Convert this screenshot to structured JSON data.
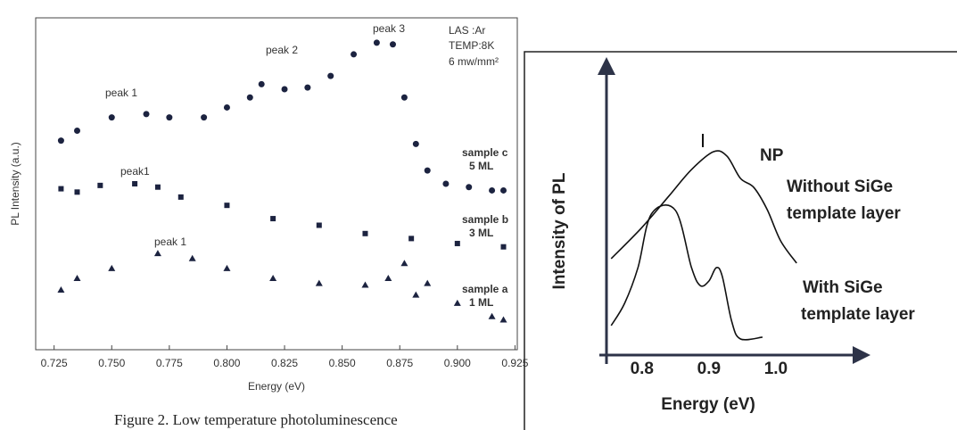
{
  "caption": "Figure 2. Low temperature photoluminescence",
  "chart_data": [
    {
      "type": "scatter",
      "xlabel": "Energy (eV)",
      "ylabel": "PL Intensity (a.u.)",
      "xlim": [
        0.717,
        0.926
      ],
      "ylim": [
        0,
        10
      ],
      "xticks": [
        {
          "value": 0.725,
          "label": "0.725"
        },
        {
          "value": 0.75,
          "label": "0.750"
        },
        {
          "value": 0.775,
          "label": "0.775"
        },
        {
          "value": 0.8,
          "label": "0.800"
        },
        {
          "value": 0.825,
          "label": "0.825"
        },
        {
          "value": 0.85,
          "label": "0.850"
        },
        {
          "value": 0.875,
          "label": "0.875"
        },
        {
          "value": 0.9,
          "label": "0.900"
        },
        {
          "value": 0.925,
          "label": "0.925"
        }
      ],
      "annotations": [
        "peak 1",
        "peak 2",
        "peak 3",
        "peak1",
        "peak 1",
        "LAS :Ar",
        "TEMP:8K",
        "6 mw/mm²"
      ],
      "series": [
        {
          "name": "sample c",
          "thickness": "5 ML",
          "marker": "circle",
          "color": "#1c2340",
          "x": [
            0.728,
            0.735,
            0.75,
            0.765,
            0.775,
            0.79,
            0.8,
            0.81,
            0.815,
            0.825,
            0.835,
            0.845,
            0.855,
            0.865,
            0.872,
            0.877,
            0.882,
            0.887,
            0.895,
            0.905,
            0.915,
            0.92
          ],
          "values": [
            6.3,
            6.6,
            7.0,
            7.1,
            7.0,
            7.0,
            7.3,
            7.6,
            8.0,
            7.85,
            7.9,
            8.25,
            8.9,
            9.25,
            9.2,
            7.6,
            6.2,
            5.4,
            5.0,
            4.9,
            4.8,
            4.8
          ]
        },
        {
          "name": "sample b",
          "thickness": "3 ML",
          "marker": "square",
          "color": "#1c2340",
          "x": [
            0.728,
            0.735,
            0.745,
            0.76,
            0.77,
            0.78,
            0.8,
            0.82,
            0.84,
            0.86,
            0.88,
            0.9,
            0.92
          ],
          "values": [
            4.85,
            4.75,
            4.95,
            5.0,
            4.9,
            4.6,
            4.35,
            3.95,
            3.75,
            3.5,
            3.35,
            3.2,
            3.1
          ]
        },
        {
          "name": "sample a",
          "thickness": "1 ML",
          "marker": "triangle",
          "color": "#1c2340",
          "x": [
            0.728,
            0.735,
            0.75,
            0.77,
            0.785,
            0.8,
            0.82,
            0.84,
            0.86,
            0.87,
            0.877,
            0.882,
            0.887,
            0.9,
            0.915,
            0.92
          ],
          "values": [
            1.8,
            2.15,
            2.45,
            2.9,
            2.75,
            2.45,
            2.15,
            2.0,
            1.95,
            2.15,
            2.6,
            1.65,
            2.0,
            1.4,
            1.0,
            0.9
          ]
        }
      ]
    },
    {
      "type": "line",
      "xlabel": "Energy (eV)",
      "ylabel": "Intensity of PL",
      "xlim": [
        0.747,
        1.12
      ],
      "ylim": [
        0,
        10
      ],
      "xticks": [
        0.8,
        0.9,
        {
          "value": 1.0,
          "label": "1.0"
        }
      ],
      "annotations": [
        "NP",
        "Without  SiGe",
        "template layer",
        "With SiGe",
        "template layer"
      ],
      "series": [
        {
          "color": "#111111",
          "x": [
            0.754,
            0.8,
            0.84,
            0.874,
            0.907,
            0.927,
            0.947,
            0.967,
            0.987,
            1.007,
            1.031
          ],
          "values": [
            3.4,
            4.5,
            5.6,
            6.54,
            7.17,
            7.01,
            6.23,
            5.91,
            5.13,
            4.03,
            3.24
          ]
        },
        {
          "color": "#111111",
          "x": [
            0.754,
            0.774,
            0.794,
            0.814,
            0.85,
            0.874,
            0.887,
            0.9,
            0.911,
            0.92,
            0.934,
            0.947,
            0.98
          ],
          "values": [
            1.04,
            1.82,
            3.08,
            4.97,
            5.1,
            3.08,
            2.45,
            2.61,
            3.08,
            2.77,
            1.19,
            0.57,
            0.63
          ]
        }
      ]
    }
  ]
}
